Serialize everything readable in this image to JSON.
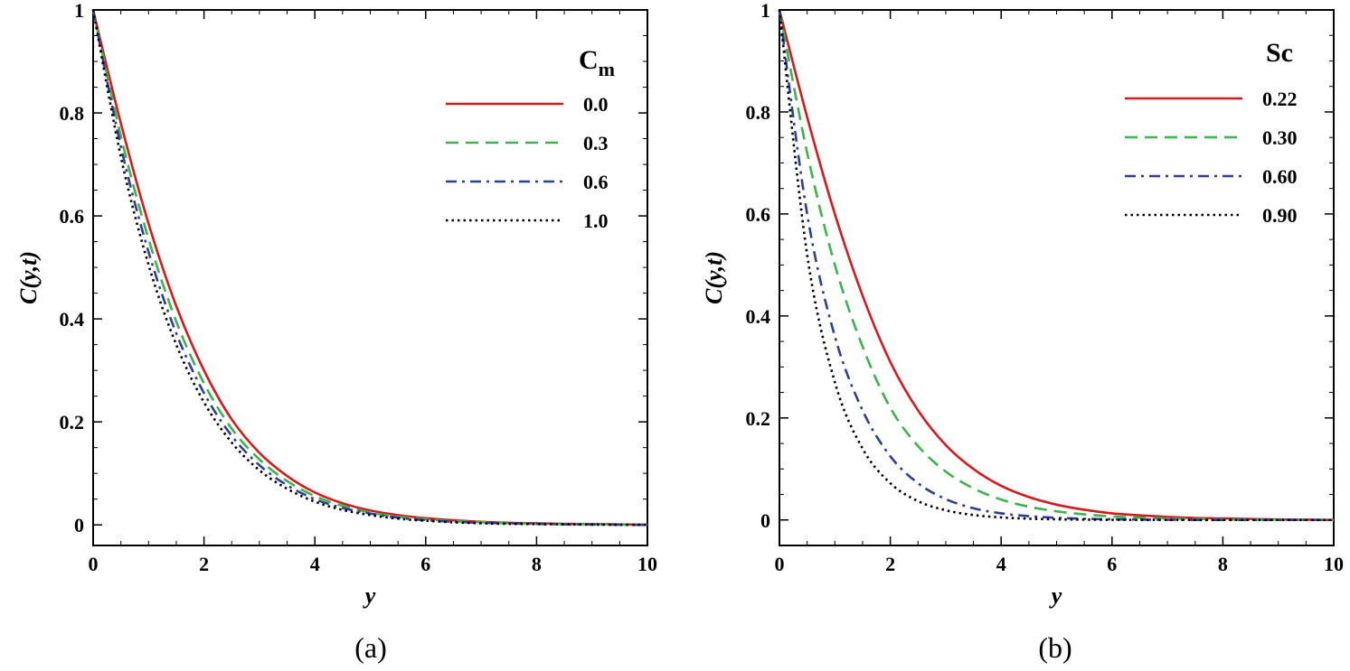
{
  "chart_data": [
    {
      "type": "line",
      "panel_label": "(a)",
      "xlabel": "y",
      "ylabel": "C(y,t)",
      "xlim": [
        0,
        10
      ],
      "ylim": [
        -0.04,
        1.0
      ],
      "xticks": [
        0,
        2,
        4,
        6,
        8,
        10
      ],
      "yticks": [
        0,
        0.2,
        0.4,
        0.6,
        0.8,
        1
      ],
      "xtick_labels": [
        "0",
        "2",
        "4",
        "6",
        "8",
        "10"
      ],
      "ytick_labels": [
        "0",
        "0.2",
        "0.4",
        "0.6",
        "0.8",
        "1"
      ],
      "legend_title": "C",
      "legend_title_sub": "m",
      "legend_position": "top-right",
      "x": [
        0,
        0.5,
        1,
        1.5,
        2,
        2.5,
        3,
        3.5,
        4,
        4.5,
        5,
        5.5,
        6,
        6.5,
        7,
        7.5,
        8,
        8.5,
        9,
        9.5,
        10
      ],
      "series": [
        {
          "name": "0.0",
          "color": "#d7191c",
          "dash": "solid",
          "values": [
            1.0,
            0.78,
            0.585,
            0.425,
            0.3,
            0.205,
            0.14,
            0.095,
            0.063,
            0.042,
            0.028,
            0.019,
            0.013,
            0.009,
            0.006,
            0.004,
            0.003,
            0.002,
            0.0015,
            0.001,
            0.0
          ]
        },
        {
          "name": "0.3",
          "color": "#3cb44b",
          "dash": "dashed",
          "values": [
            1.0,
            0.755,
            0.555,
            0.395,
            0.275,
            0.187,
            0.127,
            0.085,
            0.056,
            0.037,
            0.024,
            0.016,
            0.011,
            0.007,
            0.005,
            0.003,
            0.002,
            0.0015,
            0.001,
            0.0005,
            0.0
          ]
        },
        {
          "name": "0.6",
          "color": "#2b3f99",
          "dash": "dashdot",
          "values": [
            1.0,
            0.735,
            0.53,
            0.372,
            0.256,
            0.173,
            0.116,
            0.077,
            0.05,
            0.033,
            0.022,
            0.014,
            0.009,
            0.006,
            0.004,
            0.003,
            0.002,
            0.001,
            0.0007,
            0.0004,
            0.0
          ]
        },
        {
          "name": "1.0",
          "color": "#000000",
          "dash": "dotted",
          "values": [
            1.0,
            0.715,
            0.505,
            0.35,
            0.238,
            0.16,
            0.106,
            0.07,
            0.045,
            0.029,
            0.019,
            0.012,
            0.008,
            0.005,
            0.003,
            0.002,
            0.0015,
            0.001,
            0.0005,
            0.0002,
            0.0
          ]
        }
      ]
    },
    {
      "type": "line",
      "panel_label": "(b)",
      "xlabel": "y",
      "ylabel": "C(y,t)",
      "xlim": [
        0,
        10
      ],
      "ylim": [
        -0.05,
        1.0
      ],
      "xticks": [
        0,
        2,
        4,
        6,
        8,
        10
      ],
      "yticks": [
        0,
        0.2,
        0.4,
        0.6,
        0.8,
        1
      ],
      "xtick_labels": [
        "0",
        "2",
        "4",
        "6",
        "8",
        "10"
      ],
      "ytick_labels": [
        "0",
        "0.2",
        "0.4",
        "0.6",
        "0.8",
        "1"
      ],
      "legend_title": "Sc",
      "legend_title_sub": "",
      "legend_position": "top-right",
      "x": [
        0,
        0.5,
        1,
        1.5,
        2,
        2.5,
        3,
        3.5,
        4,
        4.5,
        5,
        5.5,
        6,
        6.5,
        7,
        7.5,
        8,
        8.5,
        9,
        9.5,
        10
      ],
      "series": [
        {
          "name": "0.22",
          "color": "#d7191c",
          "dash": "solid",
          "values": [
            1.0,
            0.79,
            0.6,
            0.44,
            0.31,
            0.215,
            0.147,
            0.1,
            0.067,
            0.045,
            0.03,
            0.02,
            0.013,
            0.009,
            0.006,
            0.004,
            0.003,
            0.002,
            0.001,
            0.0005,
            0.0
          ]
        },
        {
          "name": "0.30",
          "color": "#3cb44b",
          "dash": "dashed",
          "values": [
            1.0,
            0.72,
            0.5,
            0.34,
            0.22,
            0.145,
            0.095,
            0.062,
            0.04,
            0.026,
            0.017,
            0.011,
            0.007,
            0.0045,
            0.003,
            0.002,
            0.0013,
            0.0008,
            0.0005,
            0.0002,
            0.0
          ]
        },
        {
          "name": "0.60",
          "color": "#2b3f99",
          "dash": "dashdot",
          "values": [
            1.0,
            0.6,
            0.36,
            0.215,
            0.125,
            0.072,
            0.041,
            0.023,
            0.013,
            0.0075,
            0.0043,
            0.0024,
            0.0014,
            0.0008,
            0.0004,
            0.0002,
            0.0001,
            0.0,
            0.0,
            0.0,
            0.0
          ]
        },
        {
          "name": "0.90",
          "color": "#000000",
          "dash": "dotted",
          "values": [
            1.0,
            0.52,
            0.27,
            0.14,
            0.072,
            0.037,
            0.019,
            0.0097,
            0.005,
            0.0025,
            0.0013,
            0.0007,
            0.0003,
            0.0002,
            0.0001,
            0.0,
            0.0,
            0.0,
            0.0,
            0.0,
            0.0
          ]
        }
      ]
    }
  ]
}
